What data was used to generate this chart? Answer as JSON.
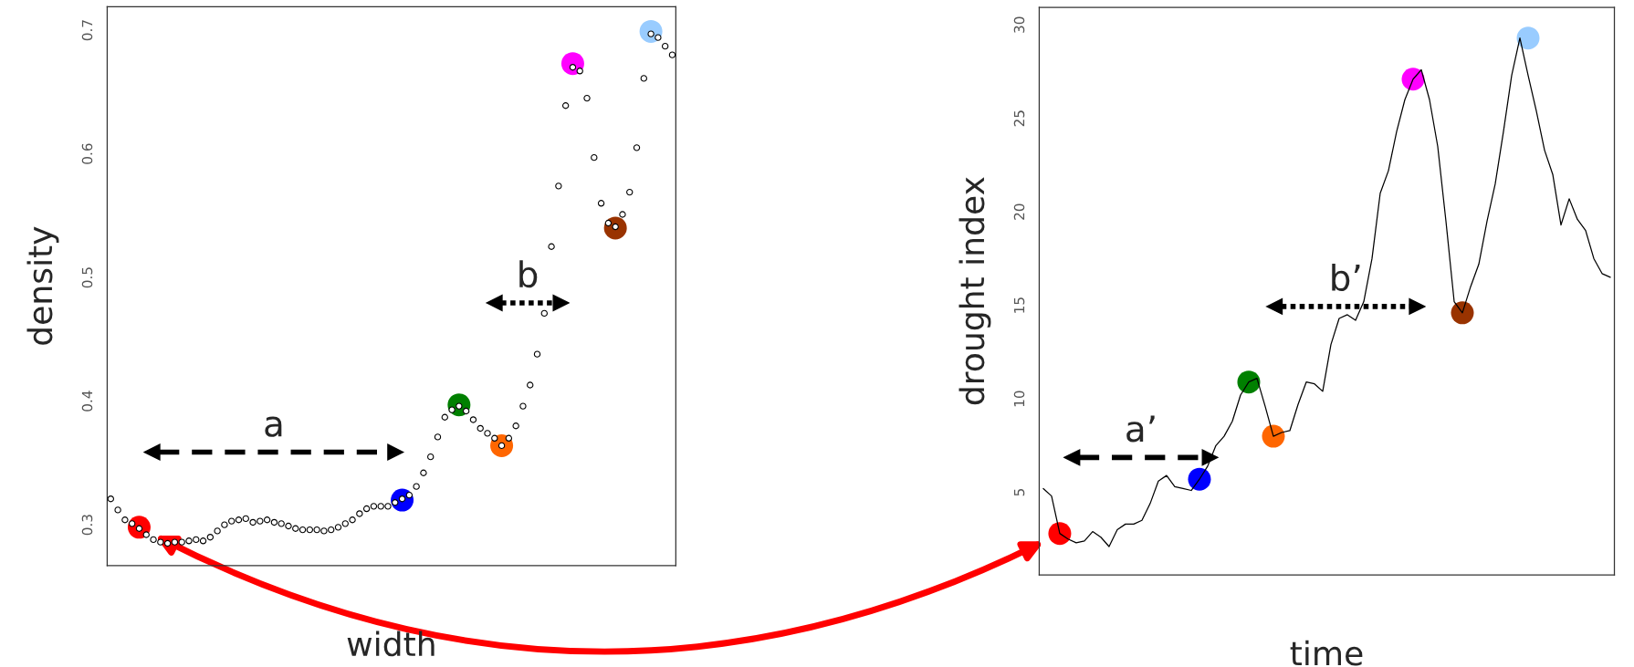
{
  "chart_data": [
    {
      "type": "scatter",
      "xlabel": "width",
      "ylabel": "density",
      "ylim": [
        0.267,
        0.719
      ],
      "yticks": [
        0.3,
        0.4,
        0.5,
        0.6,
        0.7
      ],
      "tick_labels": "y",
      "grid": false,
      "marker": "circle",
      "annotations": [
        "a",
        "b"
      ],
      "categories": [
        null,
        null,
        null,
        null,
        null,
        null,
        null,
        null,
        null,
        null,
        null,
        null,
        null,
        null,
        null,
        null,
        null,
        null,
        null,
        null,
        null,
        null,
        null,
        null,
        null,
        null,
        null,
        null,
        null,
        null,
        null,
        null,
        null,
        null,
        null,
        null,
        null,
        null,
        null,
        null,
        null,
        null,
        null,
        null,
        null,
        null,
        null,
        null,
        null,
        null,
        null,
        null,
        null,
        null,
        null,
        null,
        null,
        null,
        null,
        null,
        null,
        null,
        null,
        null,
        null,
        null,
        null,
        null,
        null,
        null,
        null,
        null,
        null,
        null,
        null,
        null,
        null,
        null,
        null,
        null
      ],
      "series": [
        {
          "color": "#000000",
          "values": [
            0.321,
            0.312,
            0.304,
            0.301,
            0.297,
            0.292,
            0.288,
            0.286,
            0.285,
            0.286,
            0.286,
            0.287,
            0.288,
            0.287,
            0.29,
            0.295,
            0.3,
            0.303,
            0.304,
            0.305,
            0.302,
            0.303,
            0.304,
            0.302,
            0.301,
            0.299,
            0.297,
            0.296,
            0.296,
            0.296,
            0.295,
            0.296,
            0.298,
            0.301,
            0.304,
            0.309,
            0.313,
            0.315,
            0.315,
            0.315,
            0.318,
            0.321,
            0.324,
            0.331,
            0.342,
            0.355,
            0.371,
            0.387,
            0.393,
            0.396,
            0.392,
            0.385,
            0.378,
            0.374,
            0.37,
            0.364,
            0.37,
            0.38,
            0.396,
            0.413,
            0.438,
            0.471,
            0.525,
            0.574,
            0.639,
            0.67,
            0.667,
            0.645,
            0.597,
            0.56,
            0.544,
            0.541,
            0.551,
            0.569,
            0.605,
            0.661,
            0.697,
            0.694,
            0.687,
            0.68
          ]
        },
        {
          "color": "#ff0000",
          "values": [
            null,
            null,
            null,
            null,
            0.298,
            null,
            null,
            null,
            null,
            null,
            null,
            null,
            null,
            null,
            null,
            null,
            null,
            null,
            null,
            null,
            null,
            null,
            null,
            null,
            null,
            null,
            null,
            null,
            null,
            null,
            null,
            null,
            null,
            null,
            null,
            null,
            null,
            null,
            null,
            null,
            null,
            null,
            null,
            null,
            null,
            null,
            null,
            null,
            null,
            null,
            null,
            null,
            null,
            null,
            null,
            null,
            null,
            null,
            null,
            null,
            null,
            null,
            null,
            null,
            null,
            null,
            null,
            null,
            null,
            null,
            null,
            null,
            null,
            null,
            null,
            null,
            null,
            null,
            null,
            null
          ]
        },
        {
          "color": "#0000ff",
          "values": [
            null,
            null,
            null,
            null,
            null,
            null,
            null,
            null,
            null,
            null,
            null,
            null,
            null,
            null,
            null,
            null,
            null,
            null,
            null,
            null,
            null,
            null,
            null,
            null,
            null,
            null,
            null,
            null,
            null,
            null,
            null,
            null,
            null,
            null,
            null,
            null,
            null,
            null,
            null,
            null,
            null,
            0.32,
            null,
            null,
            null,
            null,
            null,
            null,
            null,
            null,
            null,
            null,
            null,
            null,
            null,
            null,
            null,
            null,
            null,
            null,
            null,
            null,
            null,
            null,
            null,
            null,
            null,
            null,
            null,
            null,
            null,
            null,
            null,
            null,
            null,
            null,
            null,
            null,
            null,
            null
          ]
        },
        {
          "color": "#008000",
          "values": [
            null,
            null,
            null,
            null,
            null,
            null,
            null,
            null,
            null,
            null,
            null,
            null,
            null,
            null,
            null,
            null,
            null,
            null,
            null,
            null,
            null,
            null,
            null,
            null,
            null,
            null,
            null,
            null,
            null,
            null,
            null,
            null,
            null,
            null,
            null,
            null,
            null,
            null,
            null,
            null,
            null,
            null,
            null,
            null,
            null,
            null,
            null,
            null,
            null,
            0.397,
            null,
            null,
            null,
            null,
            null,
            null,
            null,
            null,
            null,
            null,
            null,
            null,
            null,
            null,
            null,
            null,
            null,
            null,
            null,
            null,
            null,
            null,
            null,
            null,
            null,
            null,
            null,
            null,
            null,
            null
          ]
        },
        {
          "color": "#ff6600",
          "values": [
            null,
            null,
            null,
            null,
            null,
            null,
            null,
            null,
            null,
            null,
            null,
            null,
            null,
            null,
            null,
            null,
            null,
            null,
            null,
            null,
            null,
            null,
            null,
            null,
            null,
            null,
            null,
            null,
            null,
            null,
            null,
            null,
            null,
            null,
            null,
            null,
            null,
            null,
            null,
            null,
            null,
            null,
            null,
            null,
            null,
            null,
            null,
            null,
            null,
            null,
            null,
            null,
            null,
            null,
            null,
            0.364,
            null,
            null,
            null,
            null,
            null,
            null,
            null,
            null,
            null,
            null,
            null,
            null,
            null,
            null,
            null,
            null,
            null,
            null,
            null,
            null,
            null,
            null,
            null,
            null
          ]
        },
        {
          "color": "#ff00ff",
          "values": [
            null,
            null,
            null,
            null,
            null,
            null,
            null,
            null,
            null,
            null,
            null,
            null,
            null,
            null,
            null,
            null,
            null,
            null,
            null,
            null,
            null,
            null,
            null,
            null,
            null,
            null,
            null,
            null,
            null,
            null,
            null,
            null,
            null,
            null,
            null,
            null,
            null,
            null,
            null,
            null,
            null,
            null,
            null,
            null,
            null,
            null,
            null,
            null,
            null,
            null,
            null,
            null,
            null,
            null,
            null,
            null,
            null,
            null,
            null,
            null,
            null,
            null,
            null,
            null,
            null,
            0.673,
            null,
            null,
            null,
            null,
            null,
            null,
            null,
            null,
            null,
            null,
            null,
            null,
            null,
            null
          ]
        },
        {
          "color": "#993300",
          "values": [
            null,
            null,
            null,
            null,
            null,
            null,
            null,
            null,
            null,
            null,
            null,
            null,
            null,
            null,
            null,
            null,
            null,
            null,
            null,
            null,
            null,
            null,
            null,
            null,
            null,
            null,
            null,
            null,
            null,
            null,
            null,
            null,
            null,
            null,
            null,
            null,
            null,
            null,
            null,
            null,
            null,
            null,
            null,
            null,
            null,
            null,
            null,
            null,
            null,
            null,
            null,
            null,
            null,
            null,
            null,
            null,
            null,
            null,
            null,
            null,
            null,
            null,
            null,
            null,
            null,
            null,
            null,
            null,
            null,
            null,
            null,
            0.54,
            null,
            null,
            null,
            null,
            null,
            null,
            null,
            null
          ]
        },
        {
          "color": "#99ccff",
          "values": [
            null,
            null,
            null,
            null,
            null,
            null,
            null,
            null,
            null,
            null,
            null,
            null,
            null,
            null,
            null,
            null,
            null,
            null,
            null,
            null,
            null,
            null,
            null,
            null,
            null,
            null,
            null,
            null,
            null,
            null,
            null,
            null,
            null,
            null,
            null,
            null,
            null,
            null,
            null,
            null,
            null,
            null,
            null,
            null,
            null,
            null,
            null,
            null,
            null,
            null,
            null,
            null,
            null,
            null,
            null,
            null,
            null,
            null,
            null,
            null,
            null,
            null,
            null,
            null,
            null,
            null,
            null,
            null,
            null,
            null,
            null,
            null,
            null,
            null,
            null,
            null,
            0.699,
            null,
            null,
            null
          ]
        }
      ]
    },
    {
      "type": "line",
      "xlabel": "time",
      "ylabel": "drought index",
      "ylim": [
        0.58,
        30.94
      ],
      "yticks": [
        5,
        10,
        15,
        20,
        25,
        30
      ],
      "tick_labels": "y",
      "grid": false,
      "annotations": [
        "a’",
        "b’"
      ],
      "categories": [
        null,
        null,
        null,
        null,
        null,
        null,
        null,
        null,
        null,
        null,
        null,
        null,
        null,
        null,
        null,
        null,
        null,
        null,
        null,
        null,
        null,
        null,
        null,
        null,
        null,
        null,
        null,
        null,
        null,
        null,
        null,
        null,
        null,
        null,
        null,
        null,
        null,
        null,
        null,
        null,
        null,
        null,
        null,
        null,
        null,
        null,
        null,
        null,
        null,
        null,
        null,
        null,
        null,
        null,
        null,
        null,
        null,
        null,
        null,
        null,
        null,
        null,
        null,
        null,
        null,
        null,
        null,
        null,
        null,
        null
      ],
      "series": [
        {
          "color": "#000000",
          "values": [
            5.2,
            4.8,
            2.8,
            2.5,
            2.3,
            2.4,
            2.9,
            2.6,
            2.1,
            3.0,
            3.3,
            3.3,
            3.5,
            4.4,
            5.6,
            5.9,
            5.3,
            5.2,
            5.1,
            5.7,
            6.4,
            7.5,
            8.0,
            8.8,
            10.2,
            10.9,
            11.1,
            9.6,
            8.0,
            8.2,
            8.3,
            9.7,
            10.9,
            10.8,
            10.4,
            12.9,
            14.3,
            14.5,
            14.2,
            15.2,
            17.5,
            21.0,
            22.2,
            24.3,
            26.0,
            27.1,
            27.6,
            26.0,
            23.5,
            19.5,
            15.2,
            14.6,
            16.0,
            17.2,
            19.5,
            21.5,
            24.3,
            27.3,
            29.3,
            27.3,
            25.4,
            23.3,
            22.0,
            19.3,
            20.7,
            19.6,
            19.0,
            17.5,
            16.7,
            16.5
          ]
        },
        {
          "type": "scatter",
          "color": "#ff0000",
          "values": [
            null,
            null,
            2.8,
            null,
            null,
            null,
            null,
            null,
            null,
            null,
            null,
            null,
            null,
            null,
            null,
            null,
            null,
            null,
            null,
            null,
            null,
            null,
            null,
            null,
            null,
            null,
            null,
            null,
            null,
            null,
            null,
            null,
            null,
            null,
            null,
            null,
            null,
            null,
            null,
            null,
            null,
            null,
            null,
            null,
            null,
            null,
            null,
            null,
            null,
            null,
            null,
            null,
            null,
            null,
            null,
            null,
            null,
            null,
            null,
            null,
            null,
            null,
            null,
            null,
            null,
            null,
            null,
            null,
            null,
            null
          ]
        },
        {
          "type": "scatter",
          "color": "#0000ff",
          "values": [
            null,
            null,
            null,
            null,
            null,
            null,
            null,
            null,
            null,
            null,
            null,
            null,
            null,
            null,
            null,
            null,
            null,
            null,
            null,
            5.7,
            null,
            null,
            null,
            null,
            null,
            null,
            null,
            null,
            null,
            null,
            null,
            null,
            null,
            null,
            null,
            null,
            null,
            null,
            null,
            null,
            null,
            null,
            null,
            null,
            null,
            null,
            null,
            null,
            null,
            null,
            null,
            null,
            null,
            null,
            null,
            null,
            null,
            null,
            null,
            null,
            null,
            null,
            null,
            null,
            null,
            null,
            null,
            null,
            null,
            null
          ]
        },
        {
          "type": "scatter",
          "color": "#008000",
          "values": [
            null,
            null,
            null,
            null,
            null,
            null,
            null,
            null,
            null,
            null,
            null,
            null,
            null,
            null,
            null,
            null,
            null,
            null,
            null,
            null,
            null,
            null,
            null,
            null,
            null,
            10.9,
            null,
            null,
            null,
            null,
            null,
            null,
            null,
            null,
            null,
            null,
            null,
            null,
            null,
            null,
            null,
            null,
            null,
            null,
            null,
            null,
            null,
            null,
            null,
            null,
            null,
            null,
            null,
            null,
            null,
            null,
            null,
            null,
            null,
            null,
            null,
            null,
            null,
            null,
            null,
            null,
            null,
            null,
            null,
            null
          ]
        },
        {
          "type": "scatter",
          "color": "#ff6600",
          "values": [
            null,
            null,
            null,
            null,
            null,
            null,
            null,
            null,
            null,
            null,
            null,
            null,
            null,
            null,
            null,
            null,
            null,
            null,
            null,
            null,
            null,
            null,
            null,
            null,
            null,
            null,
            null,
            null,
            8.0,
            null,
            null,
            null,
            null,
            null,
            null,
            null,
            null,
            null,
            null,
            null,
            null,
            null,
            null,
            null,
            null,
            null,
            null,
            null,
            null,
            null,
            null,
            null,
            null,
            null,
            null,
            null,
            null,
            null,
            null,
            null,
            null,
            null,
            null,
            null,
            null,
            null,
            null,
            null,
            null,
            null
          ]
        },
        {
          "type": "scatter",
          "color": "#ff00ff",
          "values": [
            null,
            null,
            null,
            null,
            null,
            null,
            null,
            null,
            null,
            null,
            null,
            null,
            null,
            null,
            null,
            null,
            null,
            null,
            null,
            null,
            null,
            null,
            null,
            null,
            null,
            null,
            null,
            null,
            null,
            null,
            null,
            null,
            null,
            null,
            null,
            null,
            null,
            null,
            null,
            null,
            null,
            null,
            null,
            null,
            null,
            27.1,
            null,
            null,
            null,
            null,
            null,
            null,
            null,
            null,
            null,
            null,
            null,
            null,
            null,
            null,
            null,
            null,
            null,
            null,
            null,
            null,
            null,
            null,
            null,
            null
          ]
        },
        {
          "type": "scatter",
          "color": "#993300",
          "values": [
            null,
            null,
            null,
            null,
            null,
            null,
            null,
            null,
            null,
            null,
            null,
            null,
            null,
            null,
            null,
            null,
            null,
            null,
            null,
            null,
            null,
            null,
            null,
            null,
            null,
            null,
            null,
            null,
            null,
            null,
            null,
            null,
            null,
            null,
            null,
            null,
            null,
            null,
            null,
            null,
            null,
            null,
            null,
            null,
            null,
            null,
            null,
            null,
            null,
            null,
            null,
            14.6,
            null,
            null,
            null,
            null,
            null,
            null,
            null,
            null,
            null,
            null,
            null,
            null,
            null,
            null,
            null,
            null,
            null,
            null
          ]
        },
        {
          "type": "scatter",
          "color": "#99ccff",
          "values": [
            null,
            null,
            null,
            null,
            null,
            null,
            null,
            null,
            null,
            null,
            null,
            null,
            null,
            null,
            null,
            null,
            null,
            null,
            null,
            null,
            null,
            null,
            null,
            null,
            null,
            null,
            null,
            null,
            null,
            null,
            null,
            null,
            null,
            null,
            null,
            null,
            null,
            null,
            null,
            null,
            null,
            null,
            null,
            null,
            null,
            null,
            null,
            null,
            null,
            null,
            null,
            null,
            null,
            null,
            null,
            null,
            null,
            null,
            null,
            29.3,
            null,
            null,
            null,
            null,
            null,
            null,
            null,
            null,
            null,
            null
          ]
        }
      ]
    }
  ]
}
